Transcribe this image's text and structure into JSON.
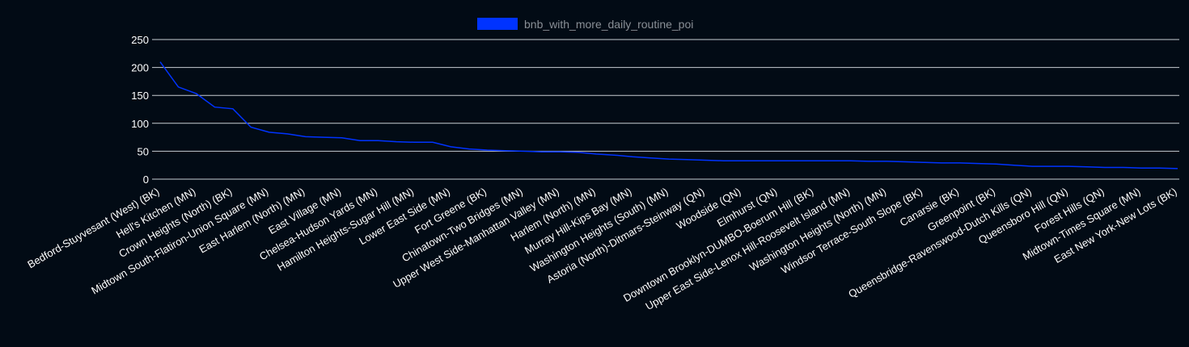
{
  "chart_data": {
    "type": "line",
    "categories": [
      "Bedford-Stuyvesant (West) (BK)",
      null,
      "Hell's Kitchen (MN)",
      null,
      "Crown Heights (North) (BK)",
      null,
      "Midtown South-Flatiron-Union Square (MN)",
      null,
      "East Harlem (North) (MN)",
      null,
      "East Village (MN)",
      null,
      "Chelsea-Hudson Yards (MN)",
      null,
      "Hamilton Heights-Sugar Hill (MN)",
      null,
      "Lower East Side (MN)",
      null,
      "Fort Greene (BK)",
      null,
      "Chinatown-Two Bridges (MN)",
      null,
      "Upper West Side-Manhattan Valley (MN)",
      null,
      "Harlem (North) (MN)",
      null,
      "Murray Hill-Kips Bay (MN)",
      null,
      "Washington Heights (South) (MN)",
      null,
      "Astoria (North)-Ditmars-Steinway (QN)",
      null,
      "Woodside (QN)",
      null,
      "Elmhurst (QN)",
      null,
      "Downtown Brooklyn-DUMBO-Boerum Hill (BK)",
      null,
      "Upper East Side-Lenox Hill-Roosevelt Island (MN)",
      null,
      "Washington Heights (North) (MN)",
      null,
      "Windsor Terrace-South Slope (BK)",
      null,
      "Canarsie (BK)",
      null,
      "Greenpoint (BK)",
      null,
      "Queensbridge-Ravenswood-Dutch Kills (QN)",
      null,
      "Queensboro Hill (QN)",
      null,
      "Forest Hills (QN)",
      null,
      "Midtown-Times Square (MN)",
      null,
      "East New York-New Lots (BK)"
    ],
    "series": [
      {
        "name": "bnb_with_more_daily_routine_poi",
        "color": "#0033ff",
        "values": [
          210,
          165,
          153,
          129,
          126,
          93,
          84,
          81,
          76,
          75,
          74,
          69,
          69,
          67,
          66,
          66,
          58,
          54,
          52,
          51,
          50,
          49,
          49,
          48,
          45,
          43,
          40,
          38,
          36,
          35,
          34,
          33,
          33,
          33,
          33,
          33,
          33,
          33,
          33,
          32,
          32,
          31,
          30,
          29,
          29,
          28,
          27,
          25,
          23,
          23,
          23,
          22,
          21,
          21,
          20,
          20,
          19
        ]
      }
    ],
    "ylim": [
      0,
      250
    ],
    "yticks": [
      0,
      50,
      100,
      150,
      200,
      250
    ],
    "grid": true,
    "legend": "top"
  }
}
